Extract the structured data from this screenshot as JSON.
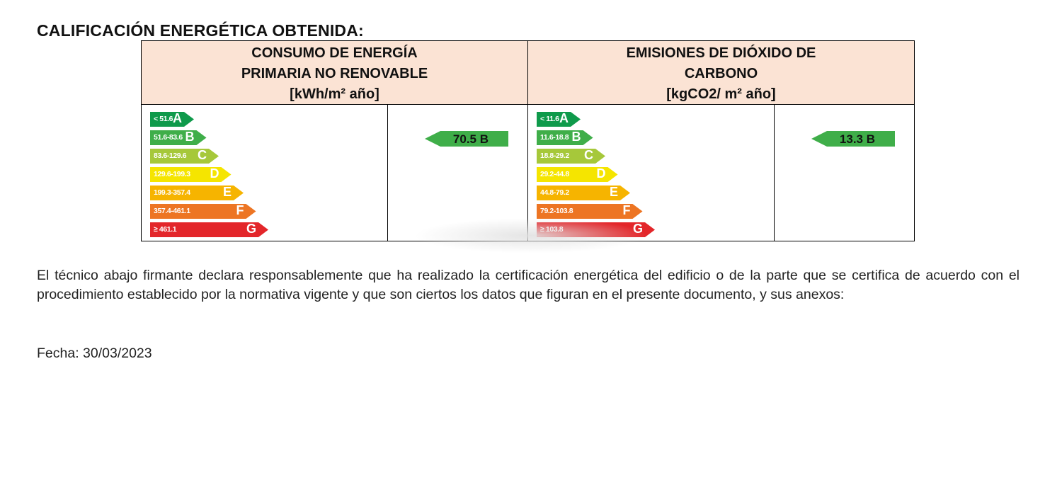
{
  "heading": "CALIFICACIÓN ENERGÉTICA OBTENIDA:",
  "consumo": {
    "header_lines": [
      "CONSUMO DE ENERGÍA",
      "PRIMARIA NO RENOVABLE",
      "[kWh/m² año]"
    ],
    "scale": [
      {
        "range": "< 51.6",
        "letter": "A",
        "color": "#0f9a4b"
      },
      {
        "range": "51.6-83.6",
        "letter": "B",
        "color": "#3fae49"
      },
      {
        "range": "83.6-129.6",
        "letter": "C",
        "color": "#a6c83a"
      },
      {
        "range": "129.6-199.3",
        "letter": "D",
        "color": "#f5e500"
      },
      {
        "range": "199.3-357.4",
        "letter": "E",
        "color": "#f6b400"
      },
      {
        "range": "357.4-461.1",
        "letter": "F",
        "color": "#ed7523"
      },
      {
        "range": "≥ 461.1",
        "letter": "G",
        "color": "#e3262a"
      }
    ],
    "result": "70.5 B"
  },
  "emisiones": {
    "header_lines": [
      "EMISIONES DE DIÓXIDO DE",
      "CARBONO",
      "[kgCO2/ m² año]"
    ],
    "scale": [
      {
        "range": "< 11.6",
        "letter": "A",
        "color": "#0f9a4b"
      },
      {
        "range": "11.6-18.8",
        "letter": "B",
        "color": "#3fae49"
      },
      {
        "range": "18.8-29.2",
        "letter": "C",
        "color": "#a6c83a"
      },
      {
        "range": "29.2-44.8",
        "letter": "D",
        "color": "#f5e500"
      },
      {
        "range": "44.8-79.2",
        "letter": "E",
        "color": "#f6b400"
      },
      {
        "range": "79.2-103.8",
        "letter": "F",
        "color": "#ed7523"
      },
      {
        "range": "≥ 103.8",
        "letter": "G",
        "color": "#e3262a"
      }
    ],
    "result": "13.3 B"
  },
  "declaration": "El técnico abajo firmante declara responsablemente que ha realizado la certificación energética del edificio o de la parte que se certifica de acuerdo con el procedimiento establecido por la normativa vigente y que son ciertos los datos que figuran en el presente documento, y sus anexos:",
  "date_line": "Fecha: 30/03/2023"
}
